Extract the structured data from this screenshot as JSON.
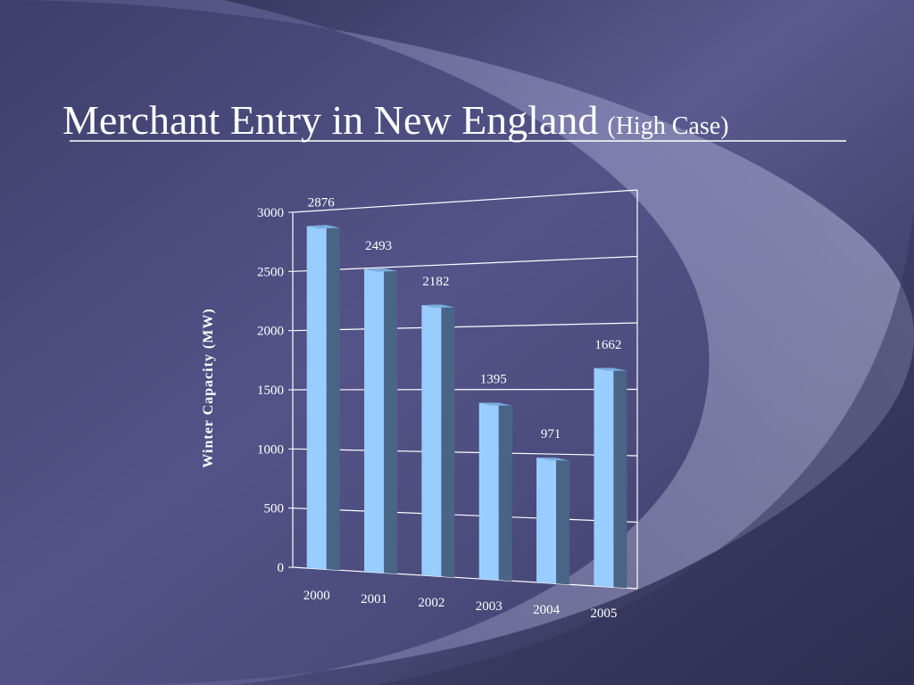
{
  "chart_data": {
    "type": "bar3d",
    "title": "Merchant Entry in New England",
    "subtitle": "(High Case)",
    "ylabel": "Winter Capacity (MW)",
    "categories": [
      "2000",
      "2001",
      "2002",
      "2003",
      "2004",
      "2005"
    ],
    "values": [
      2876,
      2493,
      2182,
      1395,
      971,
      1662
    ],
    "color": "#99ccff",
    "ylim": [
      0,
      3000
    ],
    "yticks": [
      0,
      500,
      1000,
      1500,
      2000,
      2500,
      3000
    ],
    "grid": true
  }
}
